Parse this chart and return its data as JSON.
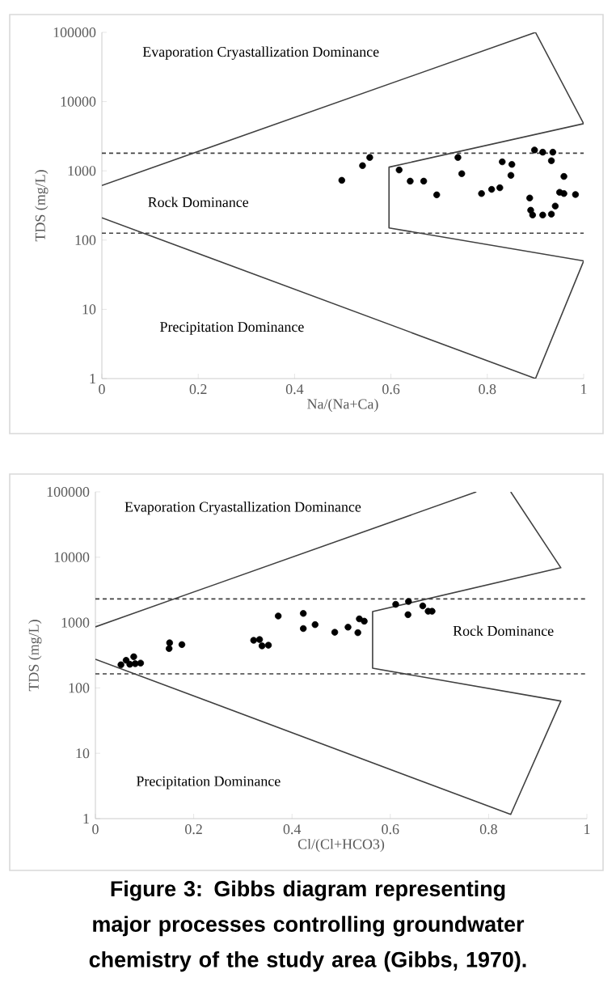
{
  "chart_data": [
    {
      "type": "scatter",
      "xlabel": "Na/(Na+Ca)",
      "ylabel": "TDS (mg/L)",
      "xlim": [
        0,
        1
      ],
      "ylim": [
        1,
        100000
      ],
      "xticks": [
        0,
        0.2,
        0.4,
        0.6,
        0.8,
        1
      ],
      "yticks": [
        1,
        10,
        100,
        1000,
        10000,
        100000
      ],
      "log": "y",
      "series": [
        {
          "marker": "circle",
          "color": "#000000",
          "x": [
            0.498,
            0.541,
            0.556,
            0.617,
            0.64,
            0.668,
            0.695,
            0.739,
            0.747,
            0.788,
            0.809,
            0.826,
            0.831,
            0.849,
            0.851,
            0.888,
            0.89,
            0.894,
            0.898,
            0.915,
            0.915,
            0.933,
            0.936,
            0.933,
            0.941,
            0.95,
            0.959,
            0.959,
            0.983
          ],
          "values": [
            730,
            1190,
            1560,
            1030,
            710,
            710,
            450,
            1560,
            910,
            470,
            540,
            570,
            1350,
            860,
            1240,
            405,
            270,
            230,
            2000,
            1860,
            230,
            237,
            1860,
            1400,
            310,
            490,
            470,
            830,
            455
          ]
        },
        {
          "type": "line",
          "marker": "none",
          "color": "#404040",
          "x": [
            0,
            0.9,
            1,
            0.596,
            0.596,
            1,
            0.9,
            0
          ],
          "values": [
            615,
            100000,
            4800,
            1130,
            150,
            50,
            1,
            210
          ]
        }
      ],
      "ref_lines": [
        {
          "axis": "y",
          "value": 1800,
          "line_style": "dashed",
          "color": "#404040"
        },
        {
          "axis": "y",
          "value": 126,
          "line_style": "dashed",
          "color": "#404040"
        }
      ],
      "annotations": [
        "Evaporation  Cryastallization  Dominance",
        "Rock Dominance",
        "Precipitation  Dominance"
      ]
    },
    {
      "type": "scatter",
      "xlabel": "Cl/(Cl+HCO3)",
      "ylabel": "TDS (mg/L)",
      "xlim": [
        0,
        1
      ],
      "ylim": [
        1,
        100000
      ],
      "xticks": [
        0,
        0.2,
        0.4,
        0.6,
        0.8,
        1
      ],
      "yticks": [
        1,
        10,
        100,
        1000,
        10000,
        100000
      ],
      "log": "y",
      "series": [
        {
          "marker": "circle",
          "color": "#000000",
          "x": [
            0.052,
            0.0625,
            0.07,
            0.078,
            0.081,
            0.092,
            0.15,
            0.151,
            0.176,
            0.322,
            0.334,
            0.339,
            0.352,
            0.372,
            0.423,
            0.423,
            0.447,
            0.487,
            0.514,
            0.534,
            0.537,
            0.547,
            0.611,
            0.637,
            0.636,
            0.666,
            0.677,
            0.685
          ],
          "values": [
            226,
            265,
            230,
            300,
            235,
            240,
            400,
            490,
            460,
            535,
            550,
            440,
            450,
            1260,
            810,
            1380,
            930,
            710,
            850,
            700,
            1140,
            1050,
            1900,
            2100,
            1320,
            1800,
            1490,
            1490
          ]
        },
        {
          "type": "line",
          "marker": "none",
          "color": "#404040",
          "x": [
            0.845,
            0.947,
            0.564,
            0.564,
            0.947,
            0.845,
            0
          ],
          "values": [
            100000,
            6900,
            1470,
            200,
            63,
            1.16,
            275
          ]
        },
        {
          "type": "line",
          "marker": "none",
          "color": "#404040",
          "x": [
            0,
            0.775
          ],
          "values": [
            860,
            100000
          ]
        }
      ],
      "ref_lines": [
        {
          "axis": "y",
          "value": 2300,
          "line_style": "dashed",
          "color": "#404040"
        },
        {
          "axis": "y",
          "value": 164,
          "line_style": "dashed",
          "color": "#404040"
        }
      ],
      "annotations": [
        "Evaporation  Cryastallization  Dominance",
        "Rock Dominance",
        "Precipitation  Dominance",
        "Figure 3: Gibbs diagram representing major processes controlling groundwater chemistry of the study area (Gibbs, 1970)."
      ]
    }
  ]
}
